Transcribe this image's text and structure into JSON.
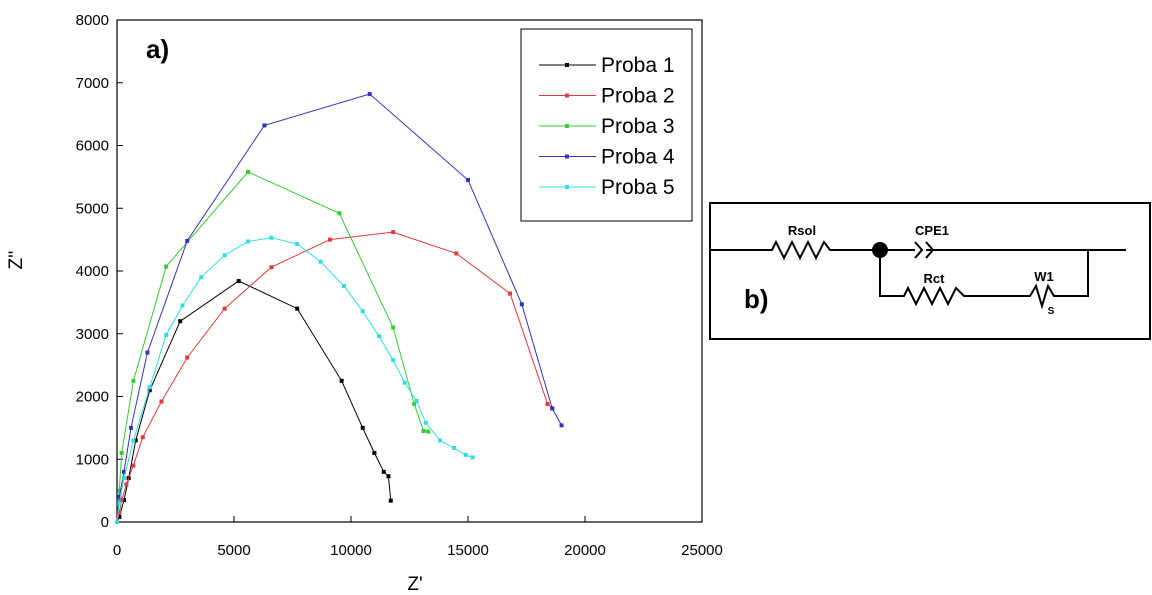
{
  "chart_data": {
    "type": "line",
    "panel_label": "a)",
    "xlabel": "Z'",
    "ylabel": "Z''",
    "xlim": [
      0,
      25000
    ],
    "ylim": [
      0,
      8000
    ],
    "x_ticks": [
      "0",
      "5000",
      "10000",
      "15000",
      "20000",
      "25000"
    ],
    "y_ticks": [
      "0",
      "1000",
      "2000",
      "3000",
      "4000",
      "5000",
      "6000",
      "7000",
      "8000"
    ],
    "grid": false,
    "legend_position": "top-right",
    "series": [
      {
        "name": "Proba 1",
        "color": "#000000",
        "points": [
          [
            0,
            0
          ],
          [
            100,
            80
          ],
          [
            300,
            350
          ],
          [
            500,
            700
          ],
          [
            800,
            1300
          ],
          [
            1400,
            2100
          ],
          [
            2700,
            3200
          ],
          [
            5200,
            3840
          ],
          [
            7700,
            3400
          ],
          [
            9600,
            2250
          ],
          [
            10500,
            1500
          ],
          [
            11000,
            1100
          ],
          [
            11400,
            800
          ],
          [
            11600,
            730
          ],
          [
            11700,
            340
          ]
        ]
      },
      {
        "name": "Proba 2",
        "color": "#e03a3a",
        "points": [
          [
            0,
            0
          ],
          [
            100,
            150
          ],
          [
            200,
            350
          ],
          [
            400,
            600
          ],
          [
            700,
            900
          ],
          [
            1100,
            1350
          ],
          [
            1900,
            1920
          ],
          [
            3000,
            2620
          ],
          [
            4600,
            3400
          ],
          [
            6600,
            4060
          ],
          [
            9100,
            4500
          ],
          [
            11800,
            4620
          ],
          [
            14500,
            4280
          ],
          [
            16800,
            3640
          ],
          [
            18400,
            1880
          ],
          [
            18600,
            1810
          ]
        ]
      },
      {
        "name": "Proba 3",
        "color": "#33cc33",
        "points": [
          [
            0,
            0
          ],
          [
            100,
            500
          ],
          [
            200,
            1100
          ],
          [
            700,
            2250
          ],
          [
            2100,
            4070
          ],
          [
            5600,
            5580
          ],
          [
            9500,
            4920
          ],
          [
            11800,
            3100
          ],
          [
            12700,
            1880
          ],
          [
            13100,
            1450
          ],
          [
            13300,
            1440
          ]
        ]
      },
      {
        "name": "Proba 4",
        "color": "#3333bb",
        "points": [
          [
            0,
            0
          ],
          [
            100,
            400
          ],
          [
            300,
            800
          ],
          [
            600,
            1500
          ],
          [
            1300,
            2700
          ],
          [
            3000,
            4480
          ],
          [
            6300,
            6320
          ],
          [
            10800,
            6820
          ],
          [
            15000,
            5450
          ],
          [
            17300,
            3470
          ],
          [
            18600,
            1810
          ],
          [
            19000,
            1540
          ]
        ]
      },
      {
        "name": "Proba 5",
        "color": "#33dddd",
        "points": [
          [
            0,
            0
          ],
          [
            100,
            300
          ],
          [
            300,
            700
          ],
          [
            700,
            1300
          ],
          [
            1400,
            2150
          ],
          [
            2100,
            2980
          ],
          [
            2800,
            3450
          ],
          [
            3600,
            3900
          ],
          [
            4600,
            4250
          ],
          [
            5600,
            4470
          ],
          [
            6600,
            4530
          ],
          [
            7700,
            4430
          ],
          [
            8700,
            4150
          ],
          [
            9700,
            3760
          ],
          [
            10500,
            3360
          ],
          [
            11200,
            2960
          ],
          [
            11800,
            2580
          ],
          [
            12300,
            2220
          ],
          [
            12800,
            1930
          ],
          [
            13200,
            1580
          ],
          [
            13800,
            1300
          ],
          [
            14400,
            1180
          ],
          [
            14900,
            1070
          ],
          [
            15200,
            1030
          ]
        ]
      }
    ]
  },
  "circuit": {
    "panel_label": "b)",
    "r_sol": "Rsol",
    "cpe": "CPE1",
    "r_ct": "Rct",
    "warburg": "W1",
    "warburg_sub": "S"
  }
}
